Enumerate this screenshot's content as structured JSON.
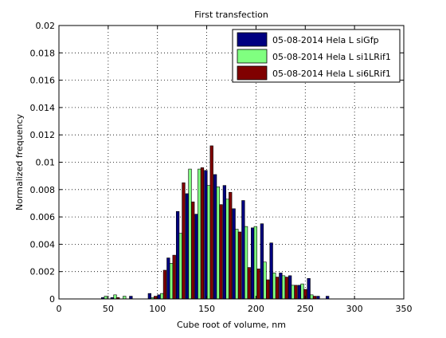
{
  "chart_data": {
    "type": "bar",
    "title": "First transfection",
    "xlabel": "Cube root of volume, nm",
    "ylabel": "Normalized frequency",
    "xlim": [
      0,
      350
    ],
    "ylim": [
      0,
      0.02
    ],
    "xticks": [
      "0",
      "50",
      "100",
      "150",
      "200",
      "250",
      "300",
      "350"
    ],
    "yticks": [
      "0",
      "0.002",
      "0.004",
      "0.006",
      "0.008",
      "0.01",
      "0.012",
      "0.014",
      "0.016",
      "0.018",
      "0.02"
    ],
    "grid": true,
    "legend_position": "top-right",
    "bin_width": 9.5,
    "series": [
      {
        "name": "05-08-2014 Hela L siGfp",
        "color": "#000080",
        "x": [
          47.5,
          57,
          66.5,
          76,
          85.5,
          95,
          104.5,
          114,
          123.5,
          133,
          142.5,
          152,
          161.5,
          171,
          180.5,
          190,
          199.5,
          209,
          218.5,
          228,
          237.5,
          247,
          256.5,
          266,
          275.5,
          285,
          294.5,
          304,
          313.5,
          323
        ],
        "values": [
          0.0001,
          0.0001,
          0,
          0.0002,
          0,
          0.0004,
          0.0003,
          0.003,
          0.0064,
          0.0077,
          0.0062,
          0.0094,
          0.0091,
          0.0083,
          0.0066,
          0.0072,
          0.0052,
          0.0055,
          0.0041,
          0.0019,
          0.0017,
          0.001,
          0.0015,
          0.0002,
          0.0002,
          0,
          0,
          0,
          0,
          0
        ]
      },
      {
        "name": "05-08-2014 Hela L si1LRif1",
        "color": "#80ff80",
        "x": [
          47.5,
          57,
          66.5,
          76,
          85.5,
          95,
          104.5,
          114,
          123.5,
          133,
          142.5,
          152,
          161.5,
          171,
          180.5,
          190,
          199.5,
          209,
          218.5,
          228,
          237.5,
          247,
          256.5,
          266,
          275.5,
          285,
          294.5,
          304,
          313.5,
          323
        ],
        "values": [
          0.0002,
          0.0003,
          0.0002,
          0,
          0,
          0.0001,
          0.0004,
          0.0026,
          0.0048,
          0.0095,
          0.0095,
          0.0083,
          0.0082,
          0.0073,
          0.0051,
          0.0053,
          0.0053,
          0.0027,
          0.0019,
          0.0017,
          0.001,
          0.0011,
          0.0003,
          0,
          0,
          0,
          0,
          0,
          0,
          0
        ]
      },
      {
        "name": "05-08-2014 Hela L si6LRif1",
        "color": "#800000",
        "x": [
          47.5,
          57,
          66.5,
          76,
          85.5,
          95,
          104.5,
          114,
          123.5,
          133,
          142.5,
          152,
          161.5,
          171,
          180.5,
          190,
          199.5,
          209,
          218.5,
          228,
          237.5,
          247,
          256.5,
          266,
          275.5,
          285,
          294.5,
          304,
          313.5,
          323
        ],
        "values": [
          0,
          0.0001,
          0,
          0,
          0,
          0.0002,
          0.0021,
          0.0032,
          0.0085,
          0.0071,
          0.0096,
          0.0112,
          0.0069,
          0.0078,
          0.0049,
          0.0023,
          0.0022,
          0.0014,
          0.0016,
          0.0016,
          0.001,
          0.0007,
          0.0002,
          0,
          0,
          0,
          0,
          0,
          0,
          0
        ]
      }
    ]
  }
}
